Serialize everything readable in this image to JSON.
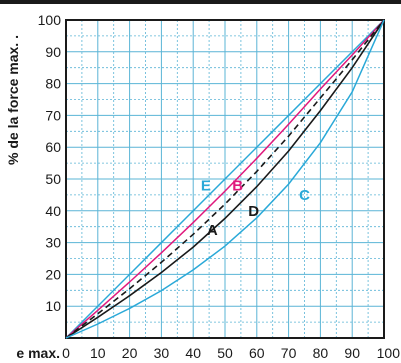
{
  "chart_data": {
    "type": "line",
    "xlabel": "e max.",
    "ylabel": "% de la force max. .",
    "xlim": [
      0,
      100
    ],
    "ylim": [
      0,
      100
    ],
    "x_ticks": [
      "0",
      "10",
      "20",
      "30",
      "40",
      "50",
      "60",
      "70",
      "80",
      "90",
      "100"
    ],
    "y_ticks": [
      "10",
      "20",
      "30",
      "40",
      "50",
      "60",
      "70",
      "80",
      "90",
      "100"
    ],
    "grid": true,
    "series": [
      {
        "name": "E",
        "color": "#2aa9d8",
        "dash": "solid",
        "x": [
          0,
          100
        ],
        "y": [
          0,
          100
        ]
      },
      {
        "name": "B",
        "color": "#e0197d",
        "dash": "solid",
        "x": [
          0,
          10,
          20,
          30,
          40,
          50,
          60,
          70,
          80,
          90,
          100
        ],
        "y": [
          0,
          8.7,
          17.6,
          26.8,
          36.3,
          46.2,
          56.5,
          67.2,
          78.3,
          89.0,
          100
        ]
      },
      {
        "name": "",
        "color": "#1a1a1a",
        "dash": "dashed",
        "x": [
          0,
          10,
          20,
          30,
          40,
          50,
          60,
          70,
          80,
          90,
          100
        ],
        "y": [
          0,
          7.6,
          15.5,
          23.8,
          32.6,
          42.1,
          52.4,
          63.5,
          75.5,
          87.5,
          100
        ]
      },
      {
        "name": "A",
        "color": "#1a1a1a",
        "dash": "solid",
        "x": [
          0,
          10,
          20,
          30,
          40,
          50,
          60,
          70,
          80,
          90,
          100
        ],
        "y": [
          0,
          6.5,
          13.3,
          20.6,
          28.6,
          37.6,
          47.6,
          58.8,
          71.5,
          85.0,
          100
        ]
      },
      {
        "name": "C",
        "color": "#2aa9d8",
        "dash": "solid",
        "x": [
          0,
          10,
          20,
          30,
          40,
          50,
          60,
          70,
          80,
          90,
          100
        ],
        "y": [
          0,
          4.4,
          9.3,
          14.9,
          21.4,
          28.9,
          37.8,
          48.4,
          61.4,
          77.4,
          100
        ]
      }
    ],
    "annotations": [
      {
        "text": "E",
        "x": 44,
        "y": 48,
        "color": "#2aa9d8"
      },
      {
        "text": "B",
        "x": 54,
        "y": 48,
        "color": "#e0197d"
      },
      {
        "text": "D",
        "x": 59,
        "y": 40,
        "color": "#1a1a1a"
      },
      {
        "text": "A",
        "x": 46,
        "y": 34,
        "color": "#1a1a1a"
      },
      {
        "text": "C",
        "x": 75,
        "y": 45,
        "color": "#2aa9d8"
      }
    ]
  }
}
